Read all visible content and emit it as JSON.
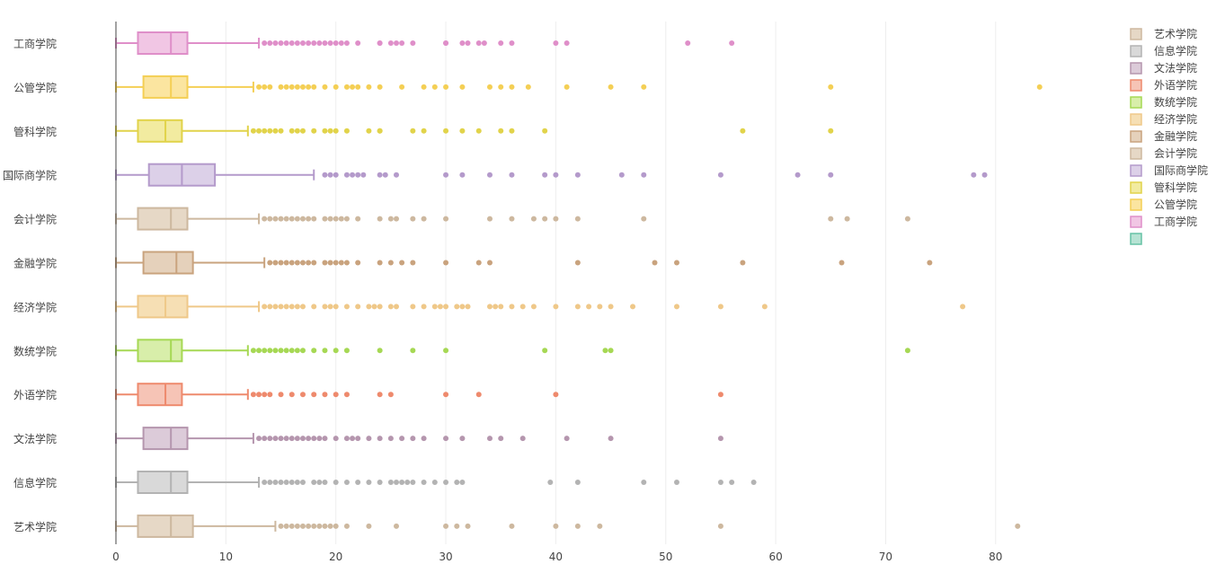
{
  "chart_data": {
    "type": "boxplot",
    "orientation": "horizontal",
    "xlim": [
      0,
      85
    ],
    "xticks": [
      0,
      10,
      20,
      30,
      40,
      50,
      60,
      70,
      80
    ],
    "grid": true,
    "legend_position": "top-right",
    "legend": [
      "艺术学院",
      "信息学院",
      "文法学院",
      "外语学院",
      "数统学院",
      "经济学院",
      "金融学院",
      "会计学院",
      "国际商学院",
      "管科学院",
      "公管学院",
      "工商学院",
      ""
    ],
    "legend_colors": [
      {
        "fill": "#e6d8c6",
        "stroke": "#cdb89f"
      },
      {
        "fill": "#d9d9d9",
        "stroke": "#b3b3b3"
      },
      {
        "fill": "#dccbd9",
        "stroke": "#b596ae"
      },
      {
        "fill": "#f6c4b6",
        "stroke": "#ee8a6d"
      },
      {
        "fill": "#d8eeaa",
        "stroke": "#a6d854"
      },
      {
        "fill": "#f6dfb4",
        "stroke": "#efc889"
      },
      {
        "fill": "#e5d1bb",
        "stroke": "#c9a37e"
      },
      {
        "fill": "#e6d8c6",
        "stroke": "#cdb89f"
      },
      {
        "fill": "#dcd0e8",
        "stroke": "#b49acb"
      },
      {
        "fill": "#f2eba0",
        "stroke": "#e1d34a"
      },
      {
        "fill": "#fbe5a0",
        "stroke": "#f4cf55"
      },
      {
        "fill": "#f1c6e4",
        "stroke": "#df8fc9"
      },
      {
        "fill": "#b7e3d4",
        "stroke": "#66c2a5"
      }
    ],
    "series": [
      {
        "name": "工商学院",
        "color": "#df8fc9",
        "fill": "#f1c6e4",
        "min": 0,
        "q1": 2,
        "median": 5,
        "q3": 6.5,
        "max": 13,
        "outliers": [
          13.5,
          14,
          14.5,
          15,
          15.5,
          16,
          16.5,
          17,
          17.5,
          18,
          18.5,
          19,
          19.5,
          20,
          20.5,
          21,
          22,
          24,
          24,
          25,
          25.5,
          26,
          27,
          30,
          30,
          31.5,
          32,
          33,
          33.5,
          35,
          36,
          40,
          41,
          52,
          56
        ]
      },
      {
        "name": "公管学院",
        "color": "#f4cf55",
        "fill": "#fbe5a0",
        "min": 0,
        "q1": 2.5,
        "median": 5,
        "q3": 6.5,
        "max": 12.5,
        "outliers": [
          13,
          13.5,
          14,
          15,
          15.5,
          16,
          16.5,
          17,
          17.5,
          18,
          19,
          20,
          21,
          21.5,
          22,
          23,
          24,
          26,
          28,
          29,
          30,
          31.5,
          34,
          35,
          36,
          37.5,
          41,
          45,
          48,
          65,
          84
        ]
      },
      {
        "name": "管科学院",
        "color": "#e1d34a",
        "fill": "#f2eba0",
        "min": 0,
        "q1": 2,
        "median": 4.5,
        "q3": 6,
        "max": 12,
        "outliers": [
          12.5,
          13,
          13.5,
          14,
          14.5,
          15,
          16,
          16.5,
          17,
          18,
          19,
          19.5,
          20,
          21,
          23,
          24,
          24,
          27,
          28,
          30,
          31.5,
          33,
          35,
          36,
          39,
          57,
          65
        ]
      },
      {
        "name": "国际商学院",
        "color": "#b49acb",
        "fill": "#dcd0e8",
        "min": 0,
        "q1": 3,
        "median": 6,
        "q3": 9,
        "max": 18,
        "outliers": [
          19,
          19.5,
          20,
          21,
          21.5,
          22,
          22.5,
          24,
          24.5,
          25.5,
          30,
          31.5,
          34,
          36,
          39,
          40,
          42,
          46,
          48,
          55,
          62,
          65,
          78,
          79
        ]
      },
      {
        "name": "会计学院",
        "color": "#cdb89f",
        "fill": "#e6d8c6",
        "min": 0,
        "q1": 2,
        "median": 5,
        "q3": 6.5,
        "max": 13,
        "outliers": [
          13.5,
          14,
          14.5,
          15,
          15.5,
          16,
          16.5,
          17,
          17.5,
          18,
          19,
          19.5,
          20,
          20.5,
          21,
          22,
          24,
          25,
          25.5,
          27,
          28,
          30,
          34,
          36,
          38,
          39,
          40,
          42,
          48,
          65,
          66.5,
          72
        ]
      },
      {
        "name": "金融学院",
        "color": "#c9a37e",
        "fill": "#e5d1bb",
        "min": 0,
        "q1": 2.5,
        "median": 5.5,
        "q3": 7,
        "max": 13.5,
        "outliers": [
          14,
          14.5,
          15,
          15.5,
          16,
          16.5,
          17,
          17.5,
          18,
          19,
          19.5,
          20,
          20.5,
          21,
          22,
          24,
          25,
          26,
          27,
          30,
          33,
          34,
          42,
          49,
          51,
          57,
          66,
          74
        ]
      },
      {
        "name": "经济学院",
        "color": "#efc889",
        "fill": "#f6dfb4",
        "min": 0,
        "q1": 2,
        "median": 4.5,
        "q3": 6.5,
        "max": 13,
        "outliers": [
          13.5,
          14,
          14.5,
          15,
          15.5,
          16,
          16.5,
          17,
          18,
          19,
          19.5,
          20,
          21,
          22,
          23,
          23.5,
          24,
          25,
          25.5,
          27,
          28,
          29,
          29.5,
          30,
          31,
          31.5,
          32,
          34,
          34.5,
          35,
          36,
          37,
          38,
          40,
          42,
          43,
          44,
          45,
          47,
          51,
          55,
          59,
          77
        ]
      },
      {
        "name": "数统学院",
        "color": "#a6d854",
        "fill": "#d8eeaa",
        "min": 0,
        "q1": 2,
        "median": 5,
        "q3": 6,
        "max": 12,
        "outliers": [
          12.5,
          13,
          13.5,
          14,
          14.5,
          15,
          15.5,
          16,
          16.5,
          17,
          18,
          19,
          20,
          21,
          24,
          27,
          30,
          39,
          44.5,
          45,
          72
        ]
      },
      {
        "name": "外语学院",
        "color": "#ee8a6d",
        "fill": "#f6c4b6",
        "min": 0,
        "q1": 2,
        "median": 4.5,
        "q3": 6,
        "max": 12,
        "outliers": [
          12.5,
          13,
          13.5,
          14,
          15,
          16,
          17,
          18,
          19,
          20,
          21,
          24,
          25,
          30,
          33,
          40,
          55
        ]
      },
      {
        "name": "文法学院",
        "color": "#b596ae",
        "fill": "#dccbd9",
        "min": 0,
        "q1": 2.5,
        "median": 5,
        "q3": 6.5,
        "max": 12.5,
        "outliers": [
          13,
          13.5,
          14,
          14.5,
          15,
          15.5,
          16,
          16.5,
          17,
          17.5,
          18,
          18.5,
          19,
          20,
          21,
          21.5,
          22,
          23,
          24,
          25,
          26,
          27,
          28,
          30,
          31.5,
          34,
          35,
          37,
          41,
          45,
          55
        ]
      },
      {
        "name": "信息学院",
        "color": "#b3b3b3",
        "fill": "#d9d9d9",
        "min": 0,
        "q1": 2,
        "median": 5,
        "q3": 6.5,
        "max": 13,
        "outliers": [
          13.5,
          14,
          14.5,
          15,
          15.5,
          16,
          16.5,
          17,
          18,
          18.5,
          19,
          20,
          21,
          22,
          23,
          24,
          25,
          25.5,
          26,
          26.5,
          27,
          28,
          29,
          30,
          31,
          31.5,
          39.5,
          42,
          48,
          51,
          55,
          56,
          58
        ]
      },
      {
        "name": "艺术学院",
        "color": "#cdb89f",
        "fill": "#e6d8c6",
        "min": 0,
        "q1": 2,
        "median": 5,
        "q3": 7,
        "max": 14.5,
        "outliers": [
          15,
          15.5,
          16,
          16.5,
          17,
          17.5,
          18,
          18.5,
          19,
          19.5,
          20,
          21,
          23,
          25.5,
          30,
          31,
          32,
          36,
          40,
          42,
          44,
          55,
          82
        ]
      }
    ]
  }
}
